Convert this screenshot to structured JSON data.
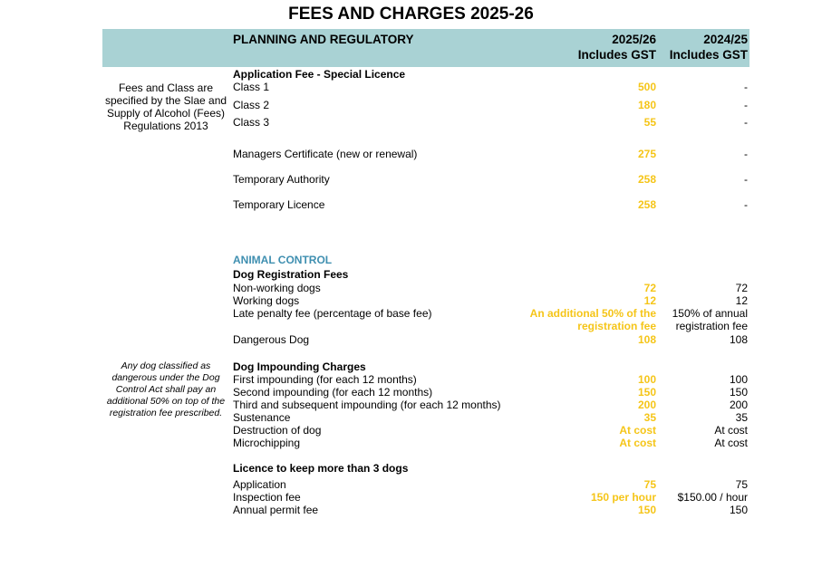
{
  "title": "FEES AND CHARGES 2025-26",
  "header": {
    "section": "PLANNING AND REGULATORY",
    "col1_line1": "2025/26",
    "col1_line2": "Includes GST",
    "col2_line1": "2024/25",
    "col2_line2": "Includes GST"
  },
  "notes": {
    "alcohol": "Fees and Class are specified by the Slae and Supply of Alcohol (Fees) Regulations 2013",
    "dog": "Any dog classified as dangerous under the Dog Control Act shall pay an additional 50% on top of the registration fee prescribed."
  },
  "rows": [
    {
      "label": "Application Fee - Special Licence",
      "style": "bold",
      "top": 75
    },
    {
      "label": "Class 1",
      "v25": "500",
      "v24": "-"
    },
    {
      "label": "Class 2",
      "v25": "180",
      "v24": "-"
    },
    {
      "label": "Class 3",
      "v25": "55",
      "v24": "-"
    },
    {
      "label": "Managers Certificate (new or renewal)",
      "v25": "275",
      "v24": "-"
    },
    {
      "label": "Temporary Authority",
      "v25": "258",
      "v24": "-"
    },
    {
      "label": "Temporary Licence",
      "v25": "258",
      "v24": "-"
    },
    {
      "label": "ANIMAL CONTROL",
      "style": "section"
    },
    {
      "label": "Dog Registration Fees",
      "style": "bold"
    },
    {
      "label": "Non-working dogs",
      "v25": "72",
      "v24": "72"
    },
    {
      "label": "Working dogs",
      "v25": "12",
      "v24": "12"
    },
    {
      "label": "Late penalty fee (percentage of base fee)",
      "v25": "An additional 50% of the",
      "v24": "150% of annual"
    },
    {
      "label": "",
      "v25": "registration fee",
      "v24": "registration fee"
    },
    {
      "label": "Dangerous Dog",
      "v25": "108",
      "v24": "108"
    },
    {
      "label": "Dog Impounding Charges",
      "style": "bold"
    },
    {
      "label": "First impounding (for each 12 months)",
      "v25": "100",
      "v24": "100"
    },
    {
      "label": "Second impounding (for each 12 months)",
      "v25": "150",
      "v24": "150"
    },
    {
      "label": "Third and subsequent impounding (for each 12 months)",
      "v25": "200",
      "v24": "200"
    },
    {
      "label": "Sustenance",
      "v25": "35",
      "v24": "35"
    },
    {
      "label": "Destruction of dog",
      "v25": "At cost",
      "v24": "At cost"
    },
    {
      "label": "Microchipping",
      "v25": "At cost",
      "v24": "At cost"
    },
    {
      "label": "Licence to keep more than 3 dogs",
      "style": "bold"
    },
    {
      "label": "Application",
      "v25": "75",
      "v24": "75"
    },
    {
      "label": "Inspection fee",
      "v25": "150 per hour",
      "v24": "$150.00 / hour"
    },
    {
      "label": "Annual permit fee",
      "v25": "150",
      "v24": "150"
    }
  ]
}
